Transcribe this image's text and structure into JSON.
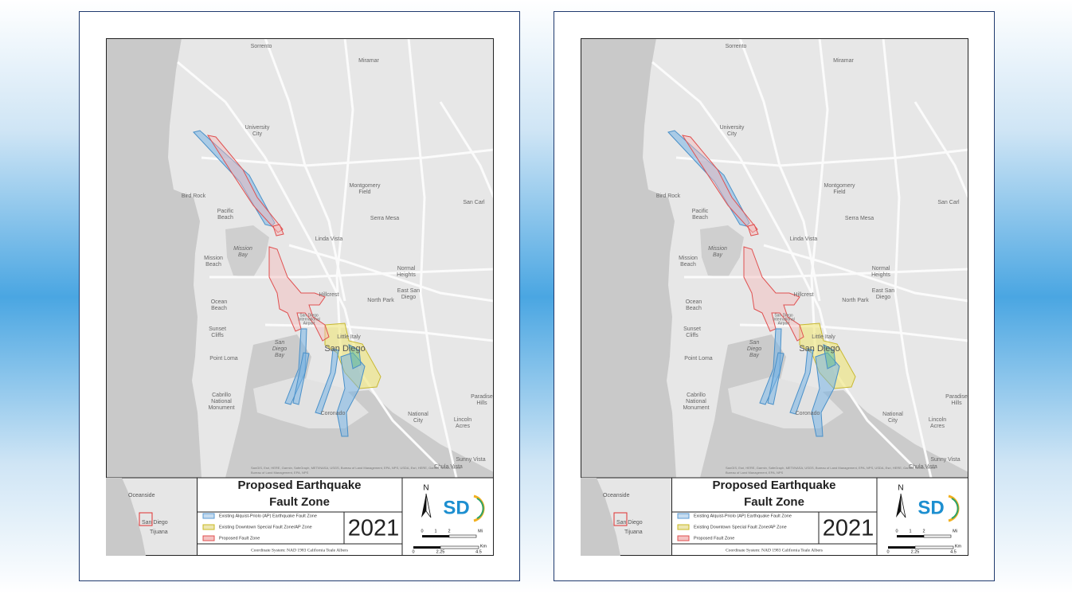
{
  "panels": [
    {
      "places": [
        [
          "Sorrento"
        ],
        [
          "Miramar"
        ],
        [
          "University",
          "City"
        ],
        [
          "Bird Rock"
        ],
        [
          "Montgomery",
          "Field"
        ],
        [
          "Serra Mesa"
        ],
        [
          "San Carl"
        ],
        [
          "Pacific",
          "Beach"
        ],
        [
          "Mission",
          "Bay"
        ],
        [
          "Linda Vista"
        ],
        [
          "Mission",
          "Beach"
        ],
        [
          "Normal",
          "Heights"
        ],
        [
          "East San",
          "Diego"
        ],
        [
          "Hillcrest"
        ],
        [
          "North Park"
        ],
        [
          "Ocean",
          "Beach"
        ],
        [
          "Sunset",
          "Cliffs"
        ],
        [
          "San",
          "Diego",
          "Bay"
        ],
        [
          "Little Italy"
        ],
        [
          "San Diego"
        ],
        [
          "Point Loma"
        ],
        [
          "Cabrillo",
          "National",
          "Monument"
        ],
        [
          "Coronado"
        ],
        [
          "National",
          "City"
        ],
        [
          "Paradise",
          "Hills"
        ],
        [
          "Lincoln",
          "Acres"
        ],
        [
          "Sunny Vista"
        ],
        [
          "Chula Vista"
        ],
        [
          "San Diego",
          "International",
          "Airport"
        ]
      ],
      "attribution": [
        "SanGIS, Esri, HERE, Garmin, SafeGraph, METI/NASA, USGS, Bureau of Land Management, EPA, NPS, USDA, Esri, HERE, Garmin, NOAA, USGS",
        "Bureau of Land Management, EPA, NPS"
      ],
      "inset": [
        "Oceanside",
        "San Diego",
        "Tijuana"
      ],
      "title": [
        "Proposed Earthquake",
        "Fault Zone"
      ],
      "legend": [
        {
          "label": "Existing Alquist-Priolo (AP) Earthquake Fault Zone",
          "color": "#5b9bd5"
        },
        {
          "label": "Existing Downtown Special Fault Zone/AP Zone",
          "color": "#c9b820"
        },
        {
          "label": "Proposed Fault Zone",
          "color": "#e05050"
        }
      ],
      "year": "2021",
      "coordinate_system": "Coordinate System: NAD 1983 California Teale Albers",
      "north": "N",
      "logo": "SD",
      "scale_mi": [
        "0",
        "1",
        "2",
        "Mi"
      ],
      "scale_km": [
        "0",
        "2.25",
        "4.5",
        "Km"
      ]
    },
    {
      "places": [
        [
          "Sorrento"
        ],
        [
          "Miramar"
        ],
        [
          "University",
          "City"
        ],
        [
          "Bird Rock"
        ],
        [
          "Montgomery",
          "Field"
        ],
        [
          "Serra Mesa"
        ],
        [
          "San Carl"
        ],
        [
          "Pacific",
          "Beach"
        ],
        [
          "Mission",
          "Bay"
        ],
        [
          "Linda Vista"
        ],
        [
          "Mission",
          "Beach"
        ],
        [
          "Normal",
          "Heights"
        ],
        [
          "East San",
          "Diego"
        ],
        [
          "Hillcrest"
        ],
        [
          "North Park"
        ],
        [
          "Ocean",
          "Beach"
        ],
        [
          "Sunset",
          "Cliffs"
        ],
        [
          "San",
          "Diego",
          "Bay"
        ],
        [
          "Little Italy"
        ],
        [
          "San Diego"
        ],
        [
          "Point Loma"
        ],
        [
          "Cabrillo",
          "National",
          "Monument"
        ],
        [
          "Coronado"
        ],
        [
          "National",
          "City"
        ],
        [
          "Paradise",
          "Hills"
        ],
        [
          "Lincoln",
          "Acres"
        ],
        [
          "Sunny Vista"
        ],
        [
          "Chula Vista"
        ],
        [
          "San Diego",
          "International",
          "Airport"
        ]
      ],
      "attribution": [
        "SanGIS, Esri, HERE, Garmin, SafeGraph, METI/NASA, USGS, Bureau of Land Management, EPA, NPS, USDA, Esri, HERE, Garmin, NOAA, USGS",
        "Bureau of Land Management, EPA, NPS"
      ],
      "inset": [
        "Oceanside",
        "San Diego",
        "Tijuana"
      ],
      "title": [
        "Proposed Earthquake",
        "Fault Zone"
      ],
      "legend": [
        {
          "label": "Existing Alquist-Priolo (AP) Earthquake Fault Zone",
          "color": "#5b9bd5"
        },
        {
          "label": "Existing Downtown Special Fault Zone/AP Zone",
          "color": "#c9b820"
        },
        {
          "label": "Proposed Fault Zone",
          "color": "#e05050"
        }
      ],
      "year": "2021",
      "coordinate_system": "Coordinate System: NAD 1983 California Teale Albers",
      "north": "N",
      "logo": "SD",
      "scale_mi": [
        "0",
        "1",
        "2",
        "Mi"
      ],
      "scale_km": [
        "0",
        "2.25",
        "4.5",
        "Km"
      ]
    }
  ]
}
